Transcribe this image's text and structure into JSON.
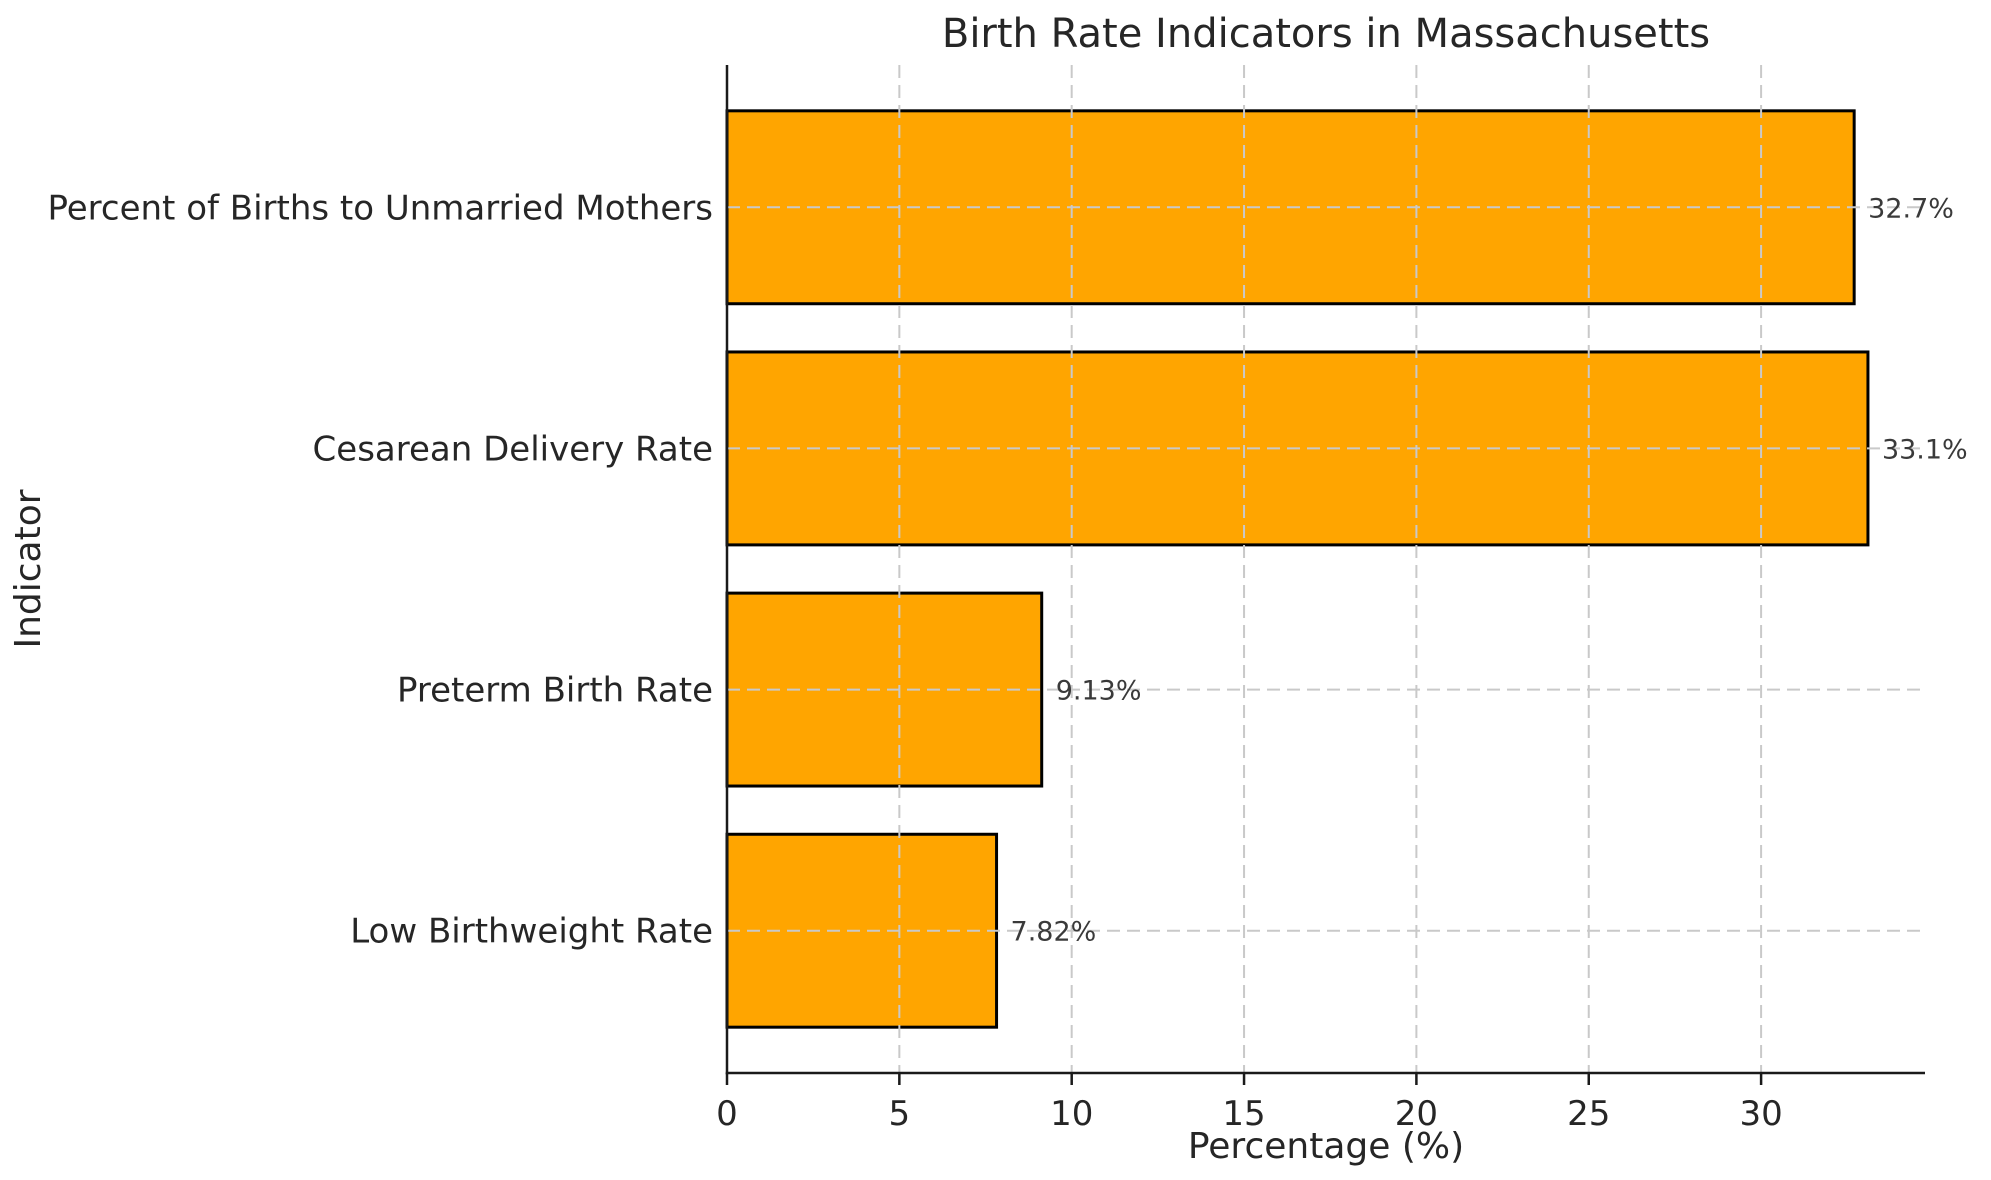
{
  "chart_data": {
    "type": "bar",
    "orientation": "horizontal",
    "title": "Birth Rate Indicators in Massachusetts",
    "xlabel": "Percentage (%)",
    "ylabel": "Indicator",
    "categories": [
      "Percent of Births to Unmarried Mothers",
      "Cesarean Delivery Rate",
      "Preterm Birth Rate",
      "Low Birthweight Rate"
    ],
    "values": [
      32.7,
      33.1,
      9.13,
      7.82
    ],
    "value_labels": [
      "32.7%",
      "33.1%",
      "9.13%",
      "7.82%"
    ],
    "xlim": [
      0,
      34.755
    ],
    "xticks": [
      0,
      5,
      10,
      15,
      20,
      25,
      30
    ],
    "grid": true,
    "grid_style": "dashed",
    "legend": "none",
    "colors": {
      "bar_fill": "#FFA500",
      "bar_edge": "#000000",
      "grid": "#C9C9C9",
      "spine": "#1A1A1A",
      "text": "#262626",
      "value_text": "#3A3A3A",
      "background": "#FFFFFF"
    }
  }
}
